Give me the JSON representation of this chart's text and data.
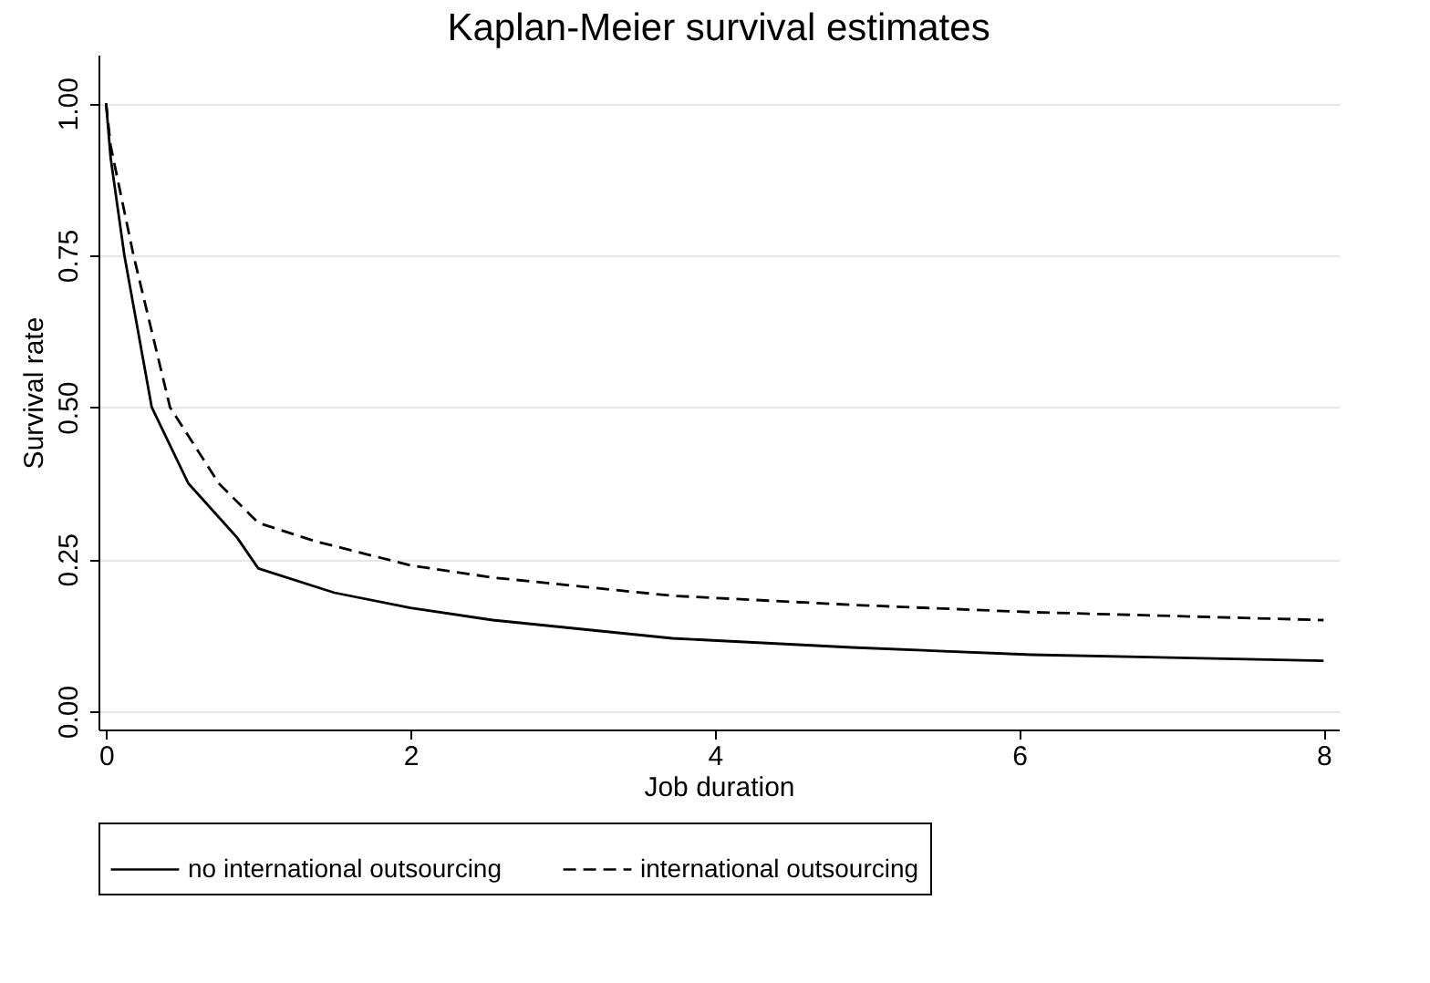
{
  "chart_data": {
    "type": "line",
    "title": "Kaplan-Meier survival estimates",
    "xlabel": "Job duration",
    "ylabel": "Survival rate",
    "xlim": [
      -0.05,
      8.1
    ],
    "ylim": [
      -0.03,
      1.08
    ],
    "xticks": [
      0,
      2,
      4,
      6,
      8
    ],
    "yticks": [
      {
        "value": 0,
        "label": "0.00"
      },
      {
        "value": 0.25,
        "label": "0.25"
      },
      {
        "value": 0.5,
        "label": "0.50"
      },
      {
        "value": 0.75,
        "label": "0.75"
      },
      {
        "value": 1,
        "label": "1.00"
      }
    ],
    "grid": "y",
    "legend": "bottom",
    "marker": "none",
    "series": [
      {
        "name": "no international outsourcing",
        "color": "#000000",
        "line_style": "solid",
        "x": [
          0,
          0.03,
          0.12,
          0.3,
          0.54,
          0.86,
          1,
          1.5,
          2,
          2.54,
          3.72,
          4.9,
          6.08,
          8
        ],
        "values": [
          1,
          0.91,
          0.75,
          0.5,
          0.375,
          0.286,
          0.235,
          0.195,
          0.17,
          0.15,
          0.12,
          0.105,
          0.093,
          0.083
        ]
      },
      {
        "name": "international outsourcing",
        "color": "#000000",
        "line_style": "dashed",
        "x": [
          0,
          0.03,
          0.18,
          0.42,
          0.74,
          1,
          1.37,
          2,
          2.54,
          3.72,
          4.9,
          6.08,
          8
        ],
        "values": [
          1,
          0.93,
          0.75,
          0.5,
          0.375,
          0.31,
          0.28,
          0.24,
          0.22,
          0.19,
          0.175,
          0.163,
          0.15
        ]
      }
    ]
  }
}
